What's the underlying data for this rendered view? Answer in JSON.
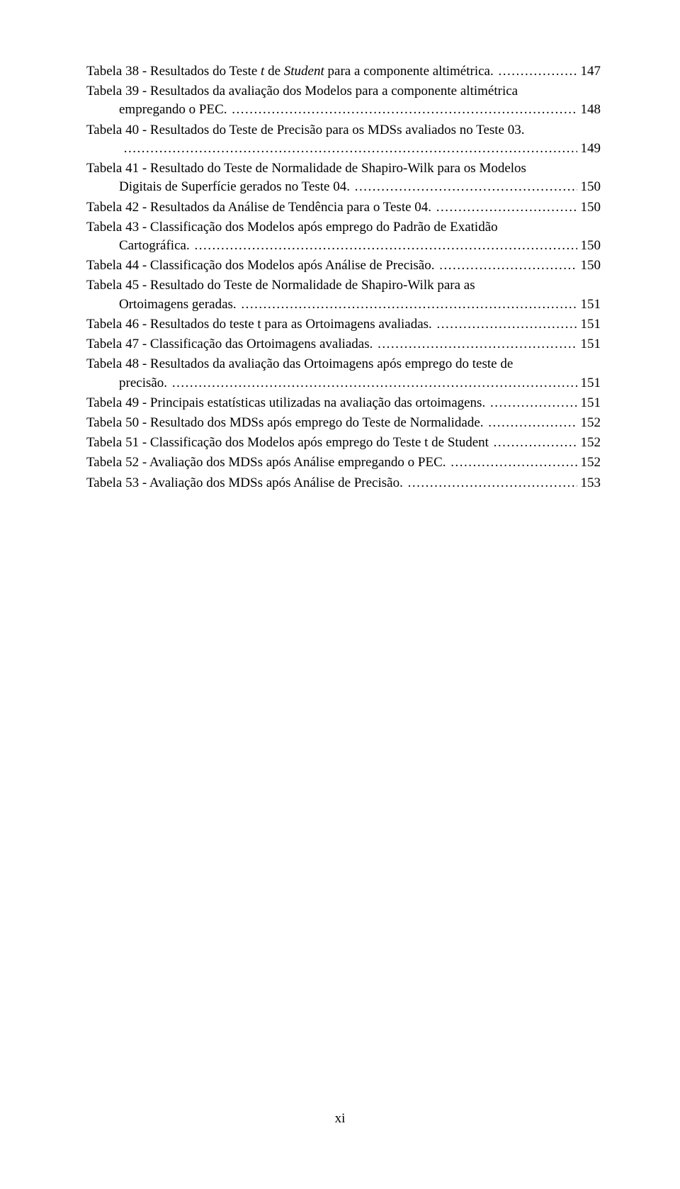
{
  "page_number_label": "xi",
  "leader_char": ".",
  "entries": [
    {
      "lines": [
        {
          "segments": [
            {
              "text": "Tabela 38 - Resultados do Teste "
            },
            {
              "text": "t",
              "italic": true
            },
            {
              "text": " de "
            },
            {
              "text": "Student",
              "italic": true
            },
            {
              "text": " para a componente altimétrica."
            }
          ],
          "page": "147"
        }
      ]
    },
    {
      "lines": [
        {
          "segments": [
            {
              "text": "Tabela 39 - Resultados da avaliação dos Modelos para a componente altimétrica"
            }
          ]
        },
        {
          "indent": true,
          "segments": [
            {
              "text": "empregando o PEC."
            }
          ],
          "page": "148"
        }
      ]
    },
    {
      "lines": [
        {
          "segments": [
            {
              "text": "Tabela 40 - Resultados do Teste de Precisão para os MDSs avaliados no Teste 03."
            }
          ]
        },
        {
          "indent": true,
          "segments": [
            {
              "text": ""
            }
          ],
          "page": "149"
        }
      ]
    },
    {
      "lines": [
        {
          "segments": [
            {
              "text": "Tabela 41 - Resultado do Teste de Normalidade de Shapiro-Wilk para os Modelos"
            }
          ]
        },
        {
          "indent": true,
          "segments": [
            {
              "text": "Digitais de Superfície gerados no Teste 04."
            }
          ],
          "page": "150"
        }
      ]
    },
    {
      "lines": [
        {
          "segments": [
            {
              "text": "Tabela 42 - Resultados da Análise de Tendência para o Teste 04."
            }
          ],
          "page": "150"
        }
      ]
    },
    {
      "lines": [
        {
          "segments": [
            {
              "text": "Tabela 43 - Classificação dos Modelos após emprego do Padrão de Exatidão"
            }
          ]
        },
        {
          "indent": true,
          "segments": [
            {
              "text": "Cartográfica."
            }
          ],
          "page": "150"
        }
      ]
    },
    {
      "lines": [
        {
          "segments": [
            {
              "text": "Tabela 44 - Classificação dos Modelos após Análise de Precisão."
            }
          ],
          "page": "150"
        }
      ]
    },
    {
      "lines": [
        {
          "segments": [
            {
              "text": "Tabela 45 - Resultado do Teste de Normalidade de Shapiro-Wilk para as"
            }
          ]
        },
        {
          "indent": true,
          "segments": [
            {
              "text": "Ortoimagens geradas."
            }
          ],
          "page": "151"
        }
      ]
    },
    {
      "lines": [
        {
          "segments": [
            {
              "text": "Tabela 46 - Resultados do teste t para as Ortoimagens avaliadas."
            }
          ],
          "page": "151"
        }
      ]
    },
    {
      "lines": [
        {
          "segments": [
            {
              "text": "Tabela 47 - Classificação das Ortoimagens avaliadas."
            }
          ],
          "page": "151"
        }
      ]
    },
    {
      "lines": [
        {
          "segments": [
            {
              "text": "Tabela 48 - Resultados da avaliação das Ortoimagens após emprego do teste de"
            }
          ]
        },
        {
          "indent": true,
          "segments": [
            {
              "text": "precisão."
            }
          ],
          "page": "151"
        }
      ]
    },
    {
      "lines": [
        {
          "segments": [
            {
              "text": "Tabela 49 - Principais estatísticas utilizadas na avaliação das ortoimagens."
            }
          ],
          "page": "151"
        }
      ]
    },
    {
      "lines": [
        {
          "segments": [
            {
              "text": "Tabela 50 - Resultado dos MDSs após emprego do Teste de Normalidade."
            }
          ],
          "page": "152"
        }
      ]
    },
    {
      "lines": [
        {
          "segments": [
            {
              "text": "Tabela 51 - Classificação dos Modelos após emprego do Teste t de Student"
            }
          ],
          "page": "152"
        }
      ]
    },
    {
      "lines": [
        {
          "segments": [
            {
              "text": "Tabela 52 - Avaliação dos MDSs após Análise empregando o PEC."
            }
          ],
          "page": "152"
        }
      ]
    },
    {
      "lines": [
        {
          "segments": [
            {
              "text": "Tabela 53 - Avaliação dos MDSs após Análise de Precisão."
            }
          ],
          "page": "153"
        }
      ]
    }
  ]
}
